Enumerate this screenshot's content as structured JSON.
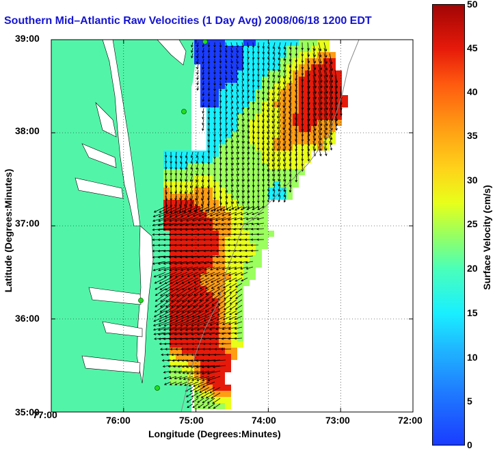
{
  "title": "Southern Mid–Atlantic Raw Velocities (1 Day Avg) 2008/06/18 1200 EDT",
  "x_axis": {
    "label": "Longitude (Degrees:Minutes)",
    "ticks": [
      "77:00",
      "76:00",
      "75:00",
      "74:00",
      "73:00",
      "72:00"
    ]
  },
  "y_axis": {
    "label": "Latitude (Degrees:Minutes)",
    "ticks": [
      "39:00",
      "38:00",
      "37:00",
      "36:00",
      "35:00"
    ]
  },
  "colorbar": {
    "label": "Surface Velocity (cm/s)",
    "ticks": [
      "50",
      "45",
      "40",
      "35",
      "30",
      "25",
      "20",
      "15",
      "10",
      "5",
      "0"
    ],
    "range": [
      0,
      50
    ],
    "colors": [
      "#1a3cff",
      "#19f0ff",
      "#9bff5d",
      "#e8ff1a",
      "#ff9d14",
      "#e61a0a",
      "#a10505"
    ]
  },
  "colors": {
    "land": "#52f5a8",
    "water": "#ffffff",
    "frame": "#000000",
    "station": "#22dd22",
    "title": "#1414d2"
  }
}
